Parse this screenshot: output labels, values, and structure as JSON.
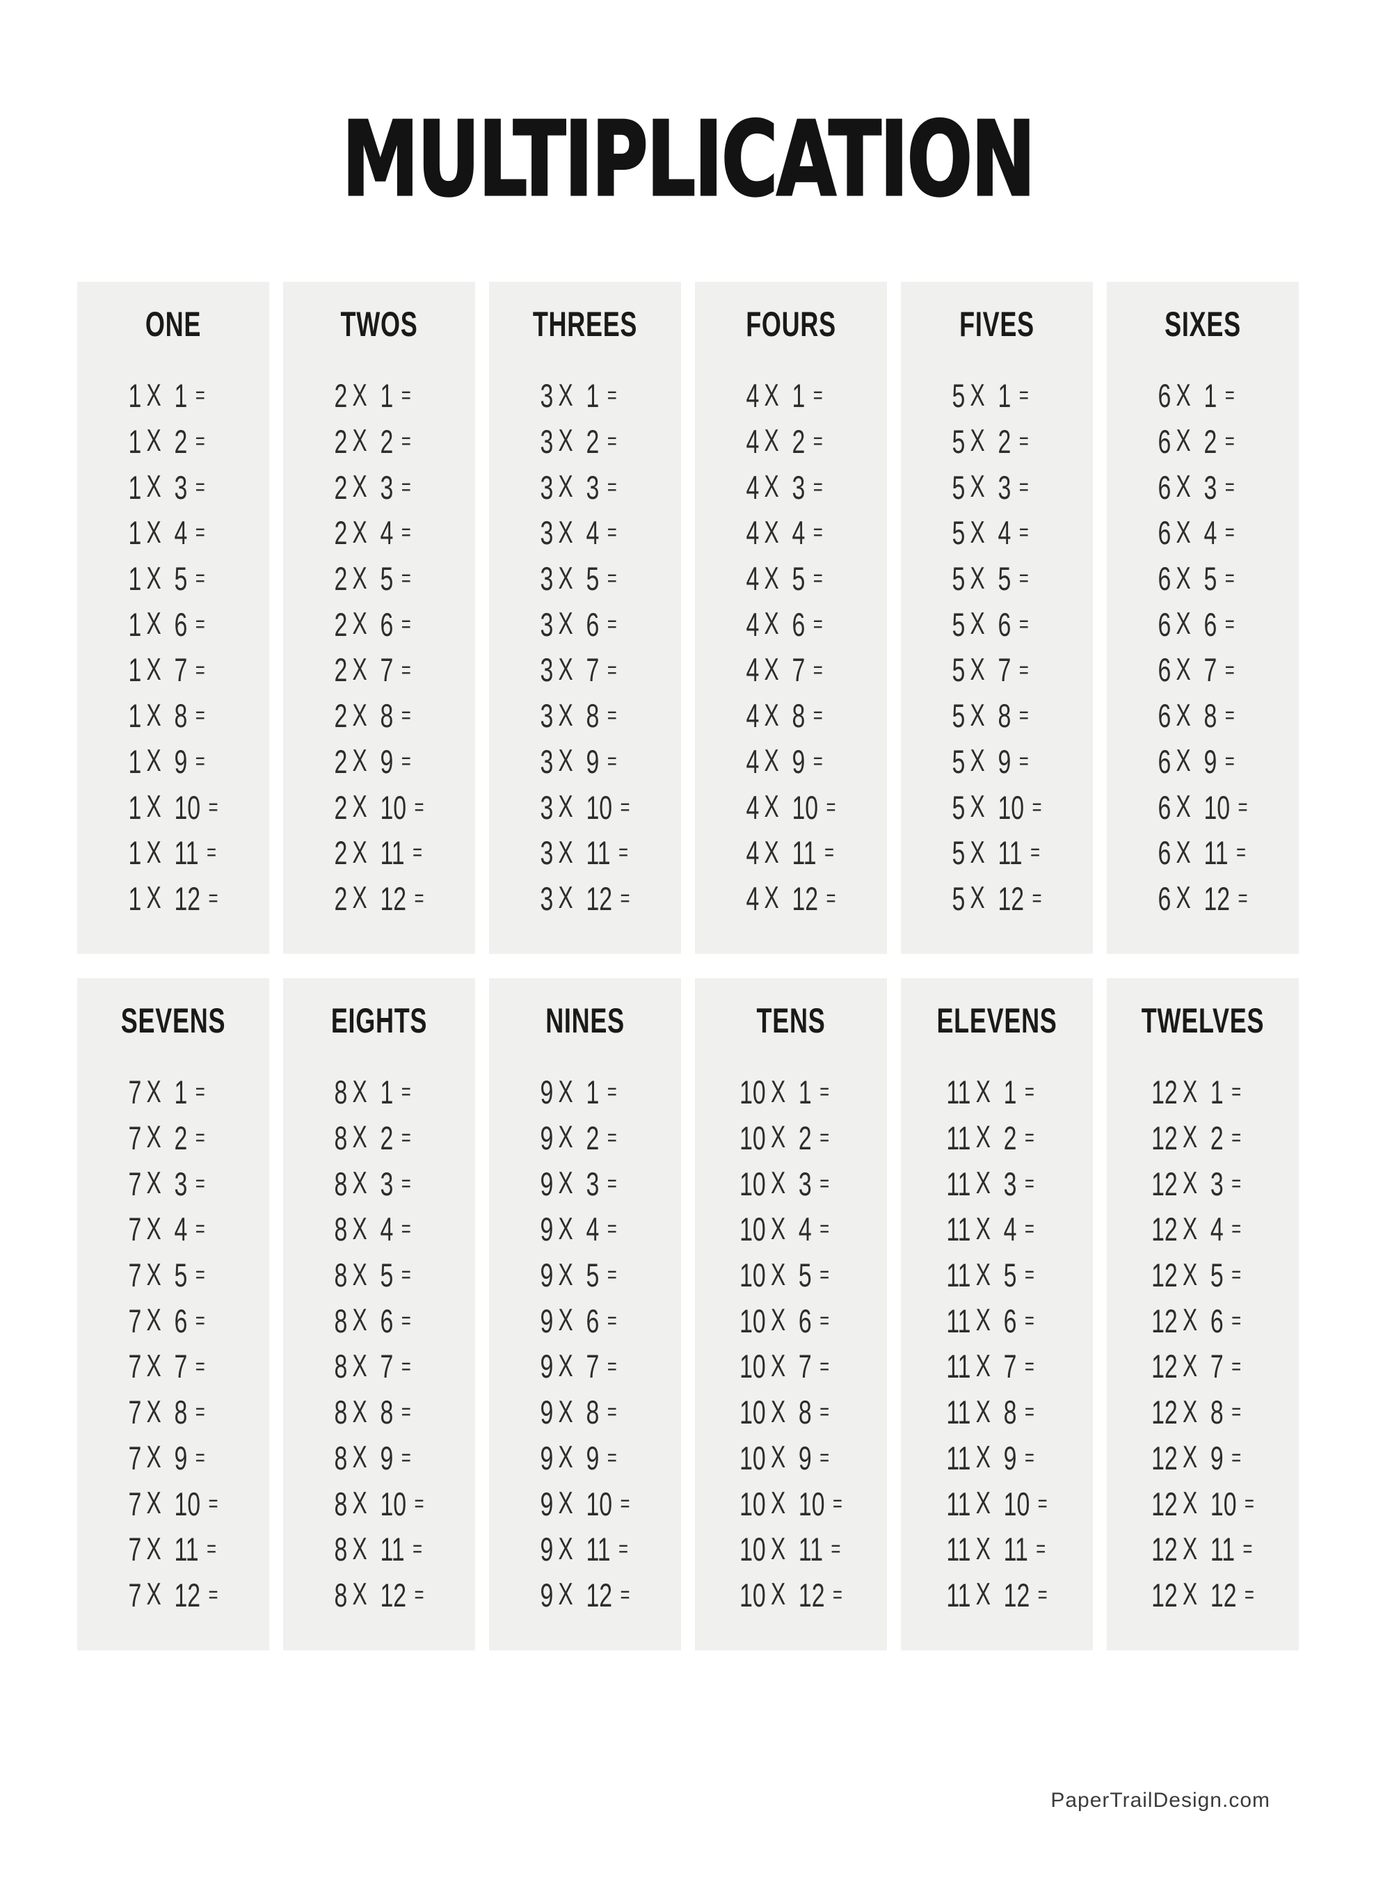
{
  "page": {
    "title": "MULTIPLICATION",
    "footer": "PaperTrailDesign.com"
  },
  "colors": {
    "page_bg": "#ffffff",
    "card_bg": "#f0f0ee",
    "title_text": "#131313",
    "header_text": "#1a1a1a",
    "equation_text": "#2d2d2d",
    "footer_text": "#3c3c3c"
  },
  "tables": [
    {
      "label": "ONE",
      "equations": [
        "1 X 1 =",
        "1 X 2 =",
        "1 X 3 =",
        "1 X 4 =",
        "1 X 5 =",
        "1 X 6 =",
        "1 X 7 =",
        "1 X 8 =",
        "1 X 9 =",
        "1 X 10 =",
        "1 X 11 =",
        "1 X 12 ="
      ]
    },
    {
      "label": "TWOS",
      "equations": [
        "2 X 1 =",
        "2 X 2 =",
        "2 X 3 =",
        "2 X 4 =",
        "2 X 5 =",
        "2 X 6 =",
        "2 X 7 =",
        "2 X 8 =",
        "2 X 9 =",
        "2 X 10 =",
        "2 X 11 =",
        "2 X 12 ="
      ]
    },
    {
      "label": "THREES",
      "equations": [
        "3 X 1 =",
        "3 X 2 =",
        "3 X 3 =",
        "3 X 4 =",
        "3 X 5 =",
        "3 X 6 =",
        "3 X 7 =",
        "3 X 8 =",
        "3 X 9 =",
        "3 X 10 =",
        "3 X 11 =",
        "3 X 12 ="
      ]
    },
    {
      "label": "FOURS",
      "equations": [
        "4 X 1 =",
        "4 X 2 =",
        "4 X 3 =",
        "4 X 4 =",
        "4 X 5 =",
        "4 X 6 =",
        "4 X 7 =",
        "4 X 8 =",
        "4 X 9 =",
        "4 X 10 =",
        "4 X 11 =",
        "4 X 12 ="
      ]
    },
    {
      "label": "FIVES",
      "equations": [
        "5 X 1 =",
        "5 X 2 =",
        "5 X 3 =",
        "5 X 4 =",
        "5 X 5 =",
        "5 X 6 =",
        "5 X 7 =",
        "5 X 8 =",
        "5 X 9 =",
        "5 X 10 =",
        "5 X 11 =",
        "5 X 12 ="
      ]
    },
    {
      "label": "SIXES",
      "equations": [
        "6 X 1 =",
        "6 X 2 =",
        "6 X 3 =",
        "6 X 4 =",
        "6 X 5 =",
        "6 X 6 =",
        "6 X 7 =",
        "6 X 8 =",
        "6 X 9 =",
        "6 X 10 =",
        "6 X 11 =",
        "6 X 12 ="
      ]
    },
    {
      "label": "SEVENS",
      "equations": [
        "7 X 1 =",
        "7 X 2 =",
        "7 X 3 =",
        "7 X 4 =",
        "7 X 5 =",
        "7 X 6 =",
        "7 X 7 =",
        "7 X 8 =",
        "7 X 9 =",
        "7 X 10 =",
        "7 X 11 =",
        "7 X 12 ="
      ]
    },
    {
      "label": "EIGHTS",
      "equations": [
        "8 X 1 =",
        "8 X 2 =",
        "8 X 3 =",
        "8 X 4 =",
        "8 X 5 =",
        "8 X 6 =",
        "8 X 7 =",
        "8 X 8 =",
        "8 X 9 =",
        "8 X 10 =",
        "8 X 11 =",
        "8 X 12 ="
      ]
    },
    {
      "label": "NINES",
      "equations": [
        "9 X 1 =",
        "9 X 2 =",
        "9 X 3 =",
        "9 X 4 =",
        "9 X 5 =",
        "9 X 6 =",
        "9 X 7 =",
        "9 X 8 =",
        "9 X 9 =",
        "9 X 10 =",
        "9 X 11 =",
        "9 X 12 ="
      ]
    },
    {
      "label": "TENS",
      "equations": [
        "10 X 1 =",
        "10 X 2 =",
        "10 X 3 =",
        "10 X 4 =",
        "10 X 5 =",
        "10 X 6 =",
        "10 X 7 =",
        "10 X 8 =",
        "10 X 9 =",
        "10 X 10 =",
        "10 X 11 =",
        "10 X 12 ="
      ]
    },
    {
      "label": "ELEVENS",
      "equations": [
        "11 X 1 =",
        "11 X 2 =",
        "11 X 3 =",
        "11 X 4 =",
        "11 X 5 =",
        "11 X 6 =",
        "11 X 7 =",
        "11 X 8 =",
        "11 X 9 =",
        "11 X 10 =",
        "11 X 11 =",
        "11 X 12 ="
      ]
    },
    {
      "label": "TWELVES",
      "equations": [
        "12 X 1 =",
        "12 X 2 =",
        "12 X 3 =",
        "12 X 4 =",
        "12 X 5 =",
        "12 X 6 =",
        "12 X 7 =",
        "12 X 8 =",
        "12 X 9 =",
        "12 X 10 =",
        "12 X 11 =",
        "12 X 12 ="
      ]
    }
  ]
}
